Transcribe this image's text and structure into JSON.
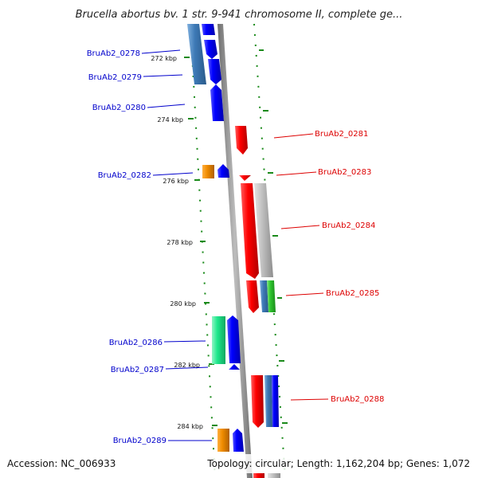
{
  "title": "Brucella abortus bv. 1 str. 9-941 chromosome II, complete ge...",
  "accession": "Accession: NC_006933",
  "topology": "Topology: circular; Length: 1,162,204 bp; Genes: 1,072",
  "colors": {
    "blue": "#0000ff",
    "steel_blue": "#3d79b6",
    "red": "#ff0000",
    "orange": "#f08c00",
    "green": "#2ec52e",
    "spring_green": "#1ee88c",
    "gray": "#c2c2c2",
    "tick_green": "#1a8a1a",
    "label_blue": "#0000cc",
    "label_red": "#dd0000",
    "backbone": "#8c8c8c"
  },
  "kbp_ticks": [
    "272 kbp",
    "274 kbp",
    "276 kbp",
    "278 kbp",
    "280 kbp",
    "282 kbp",
    "284 kbp"
  ],
  "genes_left": [
    {
      "id": "BruAb2_0278",
      "label": "BruAb2_0278"
    },
    {
      "id": "BruAb2_0279",
      "label": "BruAb2_0279"
    },
    {
      "id": "BruAb2_0280",
      "label": "BruAb2_0280"
    },
    {
      "id": "BruAb2_0282",
      "label": "BruAb2_0282"
    },
    {
      "id": "BruAb2_0286",
      "label": "BruAb2_0286"
    },
    {
      "id": "BruAb2_0287",
      "label": "BruAb2_0287"
    },
    {
      "id": "BruAb2_0289",
      "label": "BruAb2_0289"
    }
  ],
  "genes_right": [
    {
      "id": "BruAb2_0281",
      "label": "BruAb2_0281"
    },
    {
      "id": "BruAb2_0283",
      "label": "BruAb2_0283"
    },
    {
      "id": "BruAb2_0284",
      "label": "BruAb2_0284"
    },
    {
      "id": "BruAb2_0285",
      "label": "BruAb2_0285"
    },
    {
      "id": "BruAb2_0288",
      "label": "BruAb2_0288"
    }
  ]
}
